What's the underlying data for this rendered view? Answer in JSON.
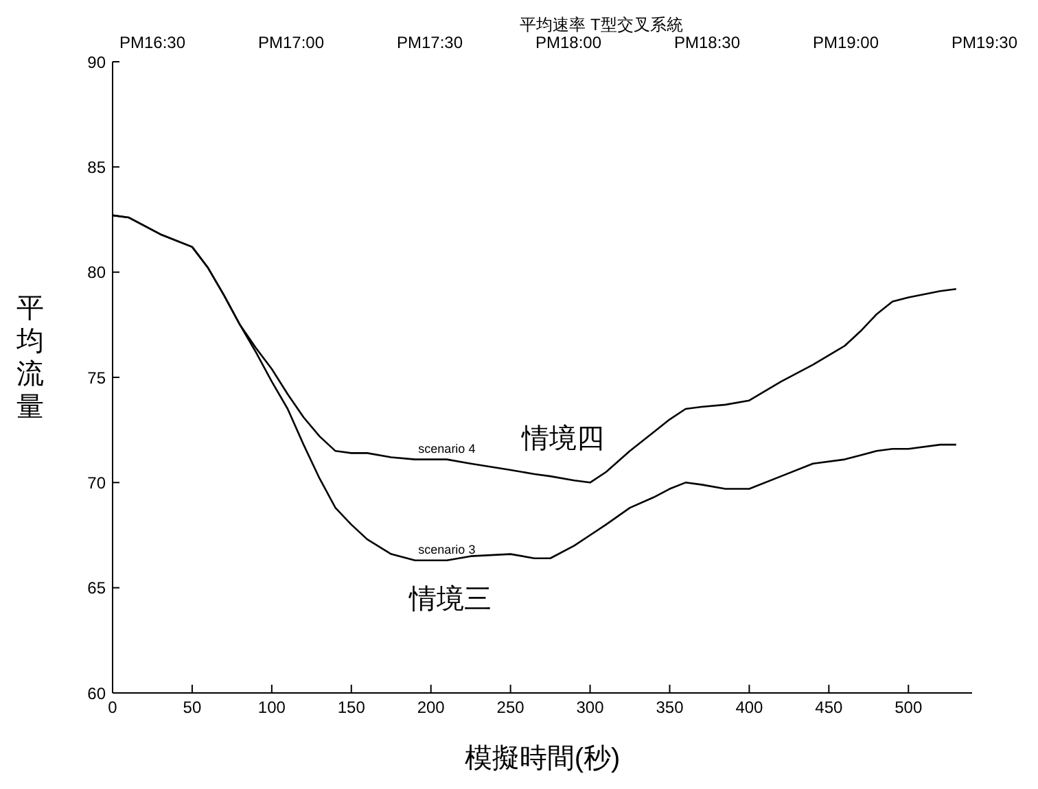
{
  "chart_data": {
    "type": "line",
    "title": "平均速率 T型交叉系統",
    "xlabel": "模擬時間(秒)",
    "ylabel": "平均流量",
    "x": [
      0,
      10,
      30,
      50,
      60,
      70,
      80,
      90,
      100,
      110,
      120,
      130,
      140,
      150,
      160,
      175,
      190,
      210,
      225,
      250,
      265,
      275,
      290,
      300,
      310,
      325,
      340,
      350,
      360,
      370,
      385,
      400,
      420,
      440,
      460,
      470,
      480,
      490,
      500,
      520,
      530
    ],
    "series": [
      {
        "name": "scenario 4",
        "color": "#000000",
        "values": [
          82.7,
          82.6,
          81.8,
          81.2,
          80.2,
          78.9,
          77.5,
          76.4,
          75.4,
          74.2,
          73.1,
          72.2,
          71.5,
          71.4,
          71.4,
          71.2,
          71.1,
          71.1,
          70.9,
          70.6,
          70.4,
          70.3,
          70.1,
          70.0,
          70.5,
          71.5,
          72.4,
          73.0,
          73.5,
          73.6,
          73.7,
          73.9,
          74.8,
          75.6,
          76.5,
          77.2,
          78.0,
          78.6,
          78.8,
          79.1,
          79.2
        ]
      },
      {
        "name": "scenario 3",
        "color": "#000000",
        "values": [
          82.7,
          82.6,
          81.8,
          81.2,
          80.2,
          78.9,
          77.5,
          76.2,
          74.8,
          73.5,
          71.8,
          70.2,
          68.8,
          68.0,
          67.3,
          66.6,
          66.3,
          66.3,
          66.5,
          66.6,
          66.4,
          66.4,
          67.0,
          67.5,
          68.0,
          68.8,
          69.3,
          69.7,
          70.0,
          69.9,
          69.7,
          69.7,
          70.3,
          70.9,
          71.1,
          71.3,
          71.5,
          71.6,
          71.6,
          71.8,
          71.8
        ]
      }
    ],
    "xlim": [
      0,
      540
    ],
    "xticks": [
      0,
      50,
      100,
      150,
      200,
      250,
      300,
      350,
      400,
      450,
      500
    ],
    "ylim": [
      60,
      90
    ],
    "yticks": [
      60,
      65,
      70,
      75,
      80,
      85,
      90
    ],
    "grid": false,
    "legend": false,
    "marker": "none",
    "line_style": "solid",
    "annotations": [
      "PM16:30",
      "PM17:00",
      "PM17:30",
      "PM18:00",
      "PM18:30",
      "PM19:00",
      "PM19:30",
      "情境四",
      "情境三"
    ]
  }
}
